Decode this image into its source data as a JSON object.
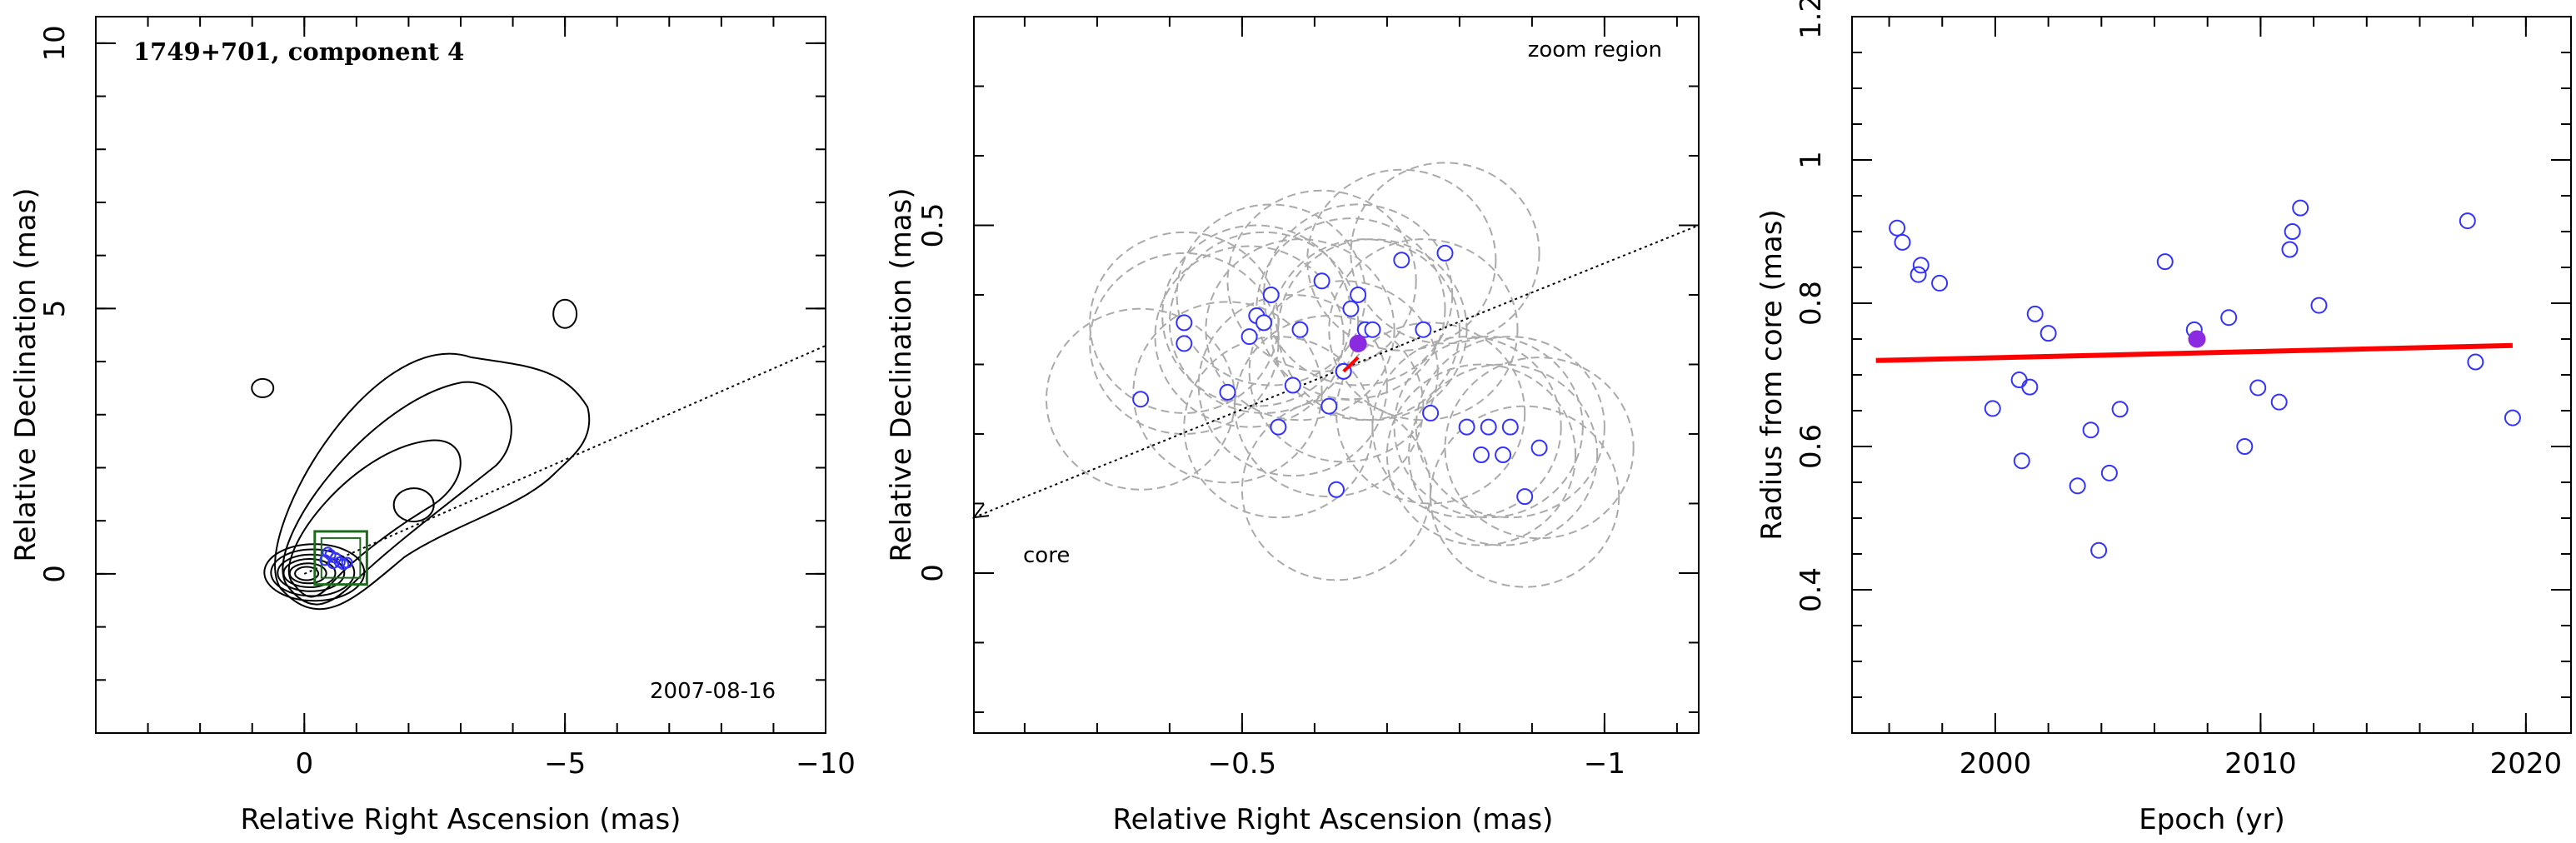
{
  "colors": {
    "axis": "#000000",
    "epoch_point": "#3333ff",
    "highlight": "#8a2be2",
    "fit": "#ff0000",
    "window": "#1e6b1e",
    "circle": "#aaaaaa"
  },
  "chart_data": [
    {
      "type": "contour",
      "title": "1749+701, component 4",
      "date": "2007-08-16",
      "xlabel": "Relative Right Ascension (mas)",
      "ylabel": "Relative Declination (mas)",
      "xlim": [
        4,
        -10
      ],
      "ylim": [
        -3,
        10.5
      ],
      "xticks": [
        "0",
        "−5",
        "−10"
      ],
      "yticks": [
        "0",
        "5",
        "10"
      ],
      "jet_axis": {
        "from": [
          0,
          0
        ],
        "to": [
          -10,
          4.3
        ]
      },
      "zoom_box": {
        "x": [
          -0.2,
          -1.2
        ],
        "y": [
          -0.2,
          0.8
        ]
      },
      "component_points": [
        {
          "x": -0.4,
          "y": 0.26
        },
        {
          "x": -0.5,
          "y": 0.36
        },
        {
          "x": -0.6,
          "y": 0.3
        },
        {
          "x": -0.68,
          "y": 0.22
        },
        {
          "x": -0.75,
          "y": 0.18
        },
        {
          "x": -0.82,
          "y": 0.21
        },
        {
          "x": -0.55,
          "y": 0.2
        },
        {
          "x": -0.45,
          "y": 0.4
        }
      ]
    },
    {
      "type": "scatter",
      "annotation_zoom": "zoom region",
      "annotation_core": "core",
      "xlabel": "Relative Right Ascension (mas)",
      "ylabel": "Relative Declination (mas)",
      "xlim": [
        -0.13,
        -1.13
      ],
      "ylim": [
        -0.23,
        0.8
      ],
      "xticks": [
        "−0.5",
        "−1"
      ],
      "yticks": [
        "0",
        "0.5"
      ],
      "jet_axis": {
        "from": [
          -0.13,
          0.08
        ],
        "to": [
          -1.13,
          0.5
        ]
      },
      "circle_radius": 0.13,
      "points": [
        {
          "x": -0.36,
          "y": 0.25
        },
        {
          "x": -0.42,
          "y": 0.36
        },
        {
          "x": -0.42,
          "y": 0.33
        },
        {
          "x": -0.48,
          "y": 0.26
        },
        {
          "x": -0.51,
          "y": 0.34
        },
        {
          "x": -0.52,
          "y": 0.37
        },
        {
          "x": -0.53,
          "y": 0.36
        },
        {
          "x": -0.54,
          "y": 0.4
        },
        {
          "x": -0.55,
          "y": 0.21
        },
        {
          "x": -0.57,
          "y": 0.27
        },
        {
          "x": -0.58,
          "y": 0.35
        },
        {
          "x": -0.61,
          "y": 0.42
        },
        {
          "x": -0.62,
          "y": 0.24
        },
        {
          "x": -0.63,
          "y": 0.12
        },
        {
          "x": -0.64,
          "y": 0.29
        },
        {
          "x": -0.65,
          "y": 0.38
        },
        {
          "x": -0.66,
          "y": 0.4
        },
        {
          "x": -0.67,
          "y": 0.35
        },
        {
          "x": -0.68,
          "y": 0.35
        },
        {
          "x": -0.72,
          "y": 0.45
        },
        {
          "x": -0.75,
          "y": 0.35
        },
        {
          "x": -0.76,
          "y": 0.23
        },
        {
          "x": -0.78,
          "y": 0.46
        },
        {
          "x": -0.81,
          "y": 0.21
        },
        {
          "x": -0.83,
          "y": 0.17
        },
        {
          "x": -0.84,
          "y": 0.21
        },
        {
          "x": -0.86,
          "y": 0.17
        },
        {
          "x": -0.87,
          "y": 0.21
        },
        {
          "x": -0.89,
          "y": 0.11
        },
        {
          "x": -0.91,
          "y": 0.18
        }
      ],
      "highlight_point": {
        "x": -0.66,
        "y": 0.33
      },
      "core_marker": {
        "x": -0.64,
        "y": 0.29
      },
      "red_vector": {
        "from": [
          -0.64,
          0.29
        ],
        "to": [
          -0.66,
          0.31
        ]
      }
    },
    {
      "type": "scatter",
      "xlabel": "Epoch (yr)",
      "ylabel": "Radius from core (mas)",
      "xlim": [
        1994.6,
        2021.7
      ],
      "ylim": [
        0.2,
        1.2
      ],
      "xticks": [
        "2000",
        "2010",
        "2020"
      ],
      "yticks": [
        "0.4",
        "0.6",
        "0.8",
        "1",
        "1.2"
      ],
      "points": [
        {
          "x": 1996.3,
          "y": 0.905
        },
        {
          "x": 1996.5,
          "y": 0.885
        },
        {
          "x": 1997.1,
          "y": 0.84
        },
        {
          "x": 1997.2,
          "y": 0.853
        },
        {
          "x": 1997.9,
          "y": 0.828
        },
        {
          "x": 1999.9,
          "y": 0.653
        },
        {
          "x": 2000.9,
          "y": 0.693
        },
        {
          "x": 2001.0,
          "y": 0.58
        },
        {
          "x": 2001.3,
          "y": 0.683
        },
        {
          "x": 2001.5,
          "y": 0.785
        },
        {
          "x": 2002.0,
          "y": 0.758
        },
        {
          "x": 2003.1,
          "y": 0.545
        },
        {
          "x": 2003.6,
          "y": 0.623
        },
        {
          "x": 2003.9,
          "y": 0.455
        },
        {
          "x": 2004.3,
          "y": 0.563
        },
        {
          "x": 2004.7,
          "y": 0.652
        },
        {
          "x": 2006.4,
          "y": 0.858
        },
        {
          "x": 2007.5,
          "y": 0.763
        },
        {
          "x": 2008.8,
          "y": 0.78
        },
        {
          "x": 2009.4,
          "y": 0.6
        },
        {
          "x": 2009.9,
          "y": 0.682
        },
        {
          "x": 2010.7,
          "y": 0.662
        },
        {
          "x": 2011.1,
          "y": 0.875
        },
        {
          "x": 2011.2,
          "y": 0.9
        },
        {
          "x": 2011.5,
          "y": 0.933
        },
        {
          "x": 2012.2,
          "y": 0.797
        },
        {
          "x": 2017.8,
          "y": 0.915
        },
        {
          "x": 2018.1,
          "y": 0.718
        },
        {
          "x": 2019.5,
          "y": 0.64
        }
      ],
      "highlight_point": {
        "x": 2007.6,
        "y": 0.75
      },
      "fit_line": {
        "x": [
          1995.5,
          2019.5
        ],
        "y": [
          0.72,
          0.741
        ]
      }
    }
  ]
}
